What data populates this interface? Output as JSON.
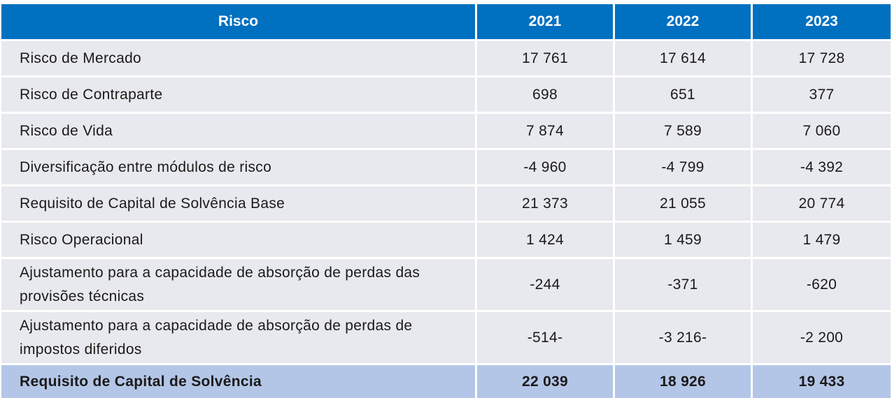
{
  "table": {
    "headers": [
      "Risco",
      "2021",
      "2022",
      "2023"
    ],
    "rows": [
      {
        "label": "Risco de Mercado",
        "values": [
          "17 761",
          "17 614",
          "17 728"
        ]
      },
      {
        "label": "Risco de Contraparte",
        "values": [
          "698",
          "651",
          "377"
        ]
      },
      {
        "label": "Risco de Vida",
        "values": [
          "7 874",
          "7 589",
          "7 060"
        ]
      },
      {
        "label": "Diversificação entre módulos de risco",
        "values": [
          "-4 960",
          "-4 799",
          "-4 392"
        ]
      },
      {
        "label": "Requisito de Capital de Solvência Base",
        "values": [
          "21 373",
          "21 055",
          "20 774"
        ]
      },
      {
        "label": "Risco Operacional",
        "values": [
          "1 424",
          "1 459",
          "1 479"
        ]
      },
      {
        "label": "Ajustamento para a capacidade de absorção de perdas das provisões técnicas",
        "values": [
          "-244",
          "-371",
          "-620"
        ]
      },
      {
        "label": "Ajustamento para a capacidade de absorção de perdas de impostos diferidos",
        "values": [
          "-514-",
          "-3 216-",
          "-2 200"
        ]
      }
    ],
    "total": {
      "label": "Requisito de Capital de Solvência",
      "values": [
        "22 039",
        "18 926",
        "19 433"
      ]
    }
  },
  "colors": {
    "header_bg": "#0070c0",
    "row_bg": "#e8e9ee",
    "total_bg": "#b4c6e7"
  }
}
